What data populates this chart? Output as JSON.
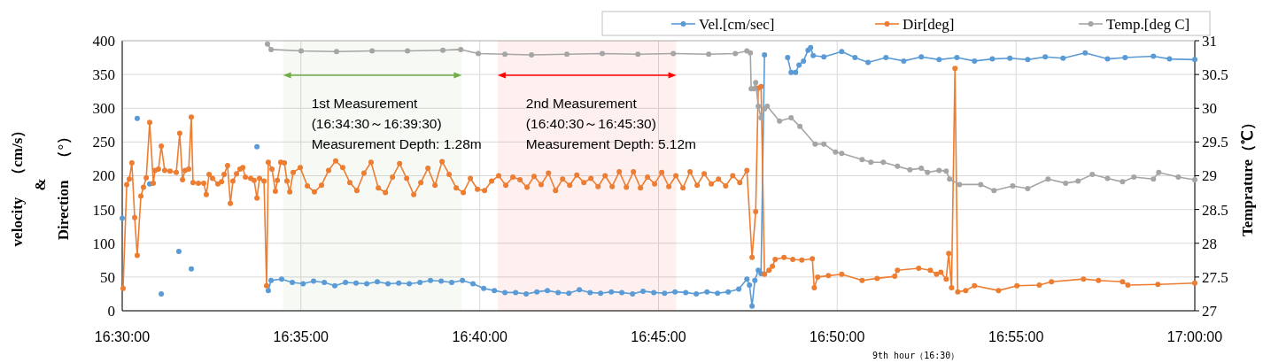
{
  "chart_data": {
    "type": "line",
    "xlabel": "9th hour（16:30）",
    "ylabel": "velocity　（cm/s）\n&\nDirection　（°）",
    "y2label": "Temprature（℃）",
    "xlim": [
      16.5,
      17
    ],
    "xticks": [
      {
        "value": 16.5,
        "label": "16:30:00"
      },
      {
        "value": 16.5833,
        "label": "16:35:00"
      },
      {
        "value": 16.6667,
        "label": "16:40:00"
      },
      {
        "value": 16.75,
        "label": "16:45:00"
      },
      {
        "value": 16.8333,
        "label": "16:50:00"
      },
      {
        "value": 16.9167,
        "label": "16:55:00"
      },
      {
        "value": 17,
        "label": "17:00:00"
      }
    ],
    "ylim": [
      0,
      400
    ],
    "yticks": [
      0,
      50,
      100,
      150,
      200,
      250,
      300,
      350,
      400
    ],
    "y2lim": [
      27,
      31
    ],
    "y2ticks": [
      27,
      27.5,
      28,
      28.5,
      29,
      29.5,
      30,
      30.5,
      31
    ],
    "grid": true,
    "legend": "top right",
    "marker": "circle",
    "bands": [
      {
        "axis": "x",
        "from": 16.575,
        "to": 16.6583,
        "label": "1st Measurement\n(16:34:30～16:39:30)\nMeasurement Depth: 1.28m",
        "color": "#70ad47"
      },
      {
        "axis": "x",
        "from": 16.675,
        "to": 16.7583,
        "label": "2nd Measurement\n(16:40:30～16:45:30)\nMeasurement Depth: 5.12m",
        "color": "#ff0000"
      }
    ],
    "series": [
      {
        "name": "Vel.[cm/sec]",
        "color": "#5b9bd5",
        "x": [
          16.5,
          16.5012,
          16.507,
          16.5083,
          16.5128,
          16.514,
          16.5182,
          16.5198,
          16.5264,
          16.5277,
          16.5322,
          16.5335,
          16.5628,
          16.5644,
          16.5681,
          16.5694,
          16.5743,
          16.5793,
          16.5843,
          16.5892,
          16.5942,
          16.5991,
          16.6041,
          16.609,
          16.614,
          16.6189,
          16.6239,
          16.6289,
          16.6338,
          16.6388,
          16.6437,
          16.6487,
          16.6536,
          16.6586,
          16.6635,
          16.6685,
          16.6735,
          16.6784,
          16.6834,
          16.6883,
          16.6933,
          16.6982,
          16.7032,
          16.7082,
          16.7131,
          16.7181,
          16.723,
          16.728,
          16.7329,
          16.7379,
          16.7428,
          16.7478,
          16.7528,
          16.7577,
          16.7627,
          16.7676,
          16.7726,
          16.7775,
          16.7825,
          16.7874,
          16.7912,
          16.7924,
          16.7936,
          16.7949,
          16.7965,
          16.7978,
          16.7994,
          16.8007,
          16.8102,
          16.8118,
          16.8139,
          16.8155,
          16.8176,
          16.8197,
          16.8209,
          16.8221,
          16.8271,
          16.8354,
          16.8416,
          16.8477,
          16.856,
          16.8643,
          16.8725,
          16.8808,
          16.8891,
          16.8973,
          16.9056,
          16.9138,
          16.9221,
          16.9303,
          16.9386,
          16.9489,
          16.9593,
          16.9675,
          16.9807,
          16.9882,
          17
        ],
        "values": [
          137,
          null,
          285,
          null,
          188,
          null,
          25,
          null,
          88,
          null,
          62,
          null,
          243,
          null,
          30,
          45,
          47,
          42,
          40,
          44,
          42,
          37,
          42,
          41,
          40,
          43,
          40,
          41,
          40,
          42,
          45,
          44,
          42,
          45,
          40,
          33,
          30,
          27,
          27,
          25,
          28,
          30,
          27,
          26,
          31,
          27,
          26,
          28,
          27,
          25,
          29,
          27,
          26,
          28,
          27,
          25,
          28,
          26,
          28,
          32,
          47,
          38,
          7,
          45,
          60,
          55,
          379,
          null,
          375,
          353,
          353,
          364,
          370,
          386,
          390,
          378,
          376,
          384,
          375,
          368,
          375,
          370,
          376,
          372,
          375,
          370,
          373,
          374,
          372,
          376,
          374,
          382,
          373,
          375,
          377,
          373,
          372
        ]
      },
      {
        "name": "Dir[deg]",
        "color": "#ed7d31",
        "x": [
          16.5004,
          16.5021,
          16.5033,
          16.5045,
          16.5058,
          16.507,
          16.5087,
          16.5099,
          16.5112,
          16.5128,
          16.5145,
          16.5153,
          16.5169,
          16.5182,
          16.5198,
          16.5223,
          16.5252,
          16.5268,
          16.5281,
          16.5293,
          16.531,
          16.5322,
          16.533,
          16.5355,
          16.538,
          16.5392,
          16.5405,
          16.5421,
          16.5446,
          16.5463,
          16.5475,
          16.5491,
          16.5504,
          16.5516,
          16.5533,
          16.5549,
          16.5562,
          16.5574,
          16.5599,
          16.5615,
          16.5628,
          16.564,
          16.5661,
          16.5673,
          16.5681,
          16.5698,
          16.5714,
          16.5723,
          16.5739,
          16.5756,
          16.5768,
          16.5781,
          16.5797,
          16.583,
          16.5863,
          16.5896,
          16.5929,
          16.5962,
          16.5995,
          16.6028,
          16.6061,
          16.6094,
          16.6127,
          16.616,
          16.6194,
          16.6227,
          16.626,
          16.6293,
          16.6326,
          16.6359,
          16.6392,
          16.6425,
          16.6458,
          16.6491,
          16.6524,
          16.6557,
          16.659,
          16.6623,
          16.6656,
          16.6689,
          16.6722,
          16.6755,
          16.6788,
          16.6821,
          16.6854,
          16.6887,
          16.692,
          16.6953,
          16.6987,
          16.702,
          16.7053,
          16.7086,
          16.7119,
          16.7152,
          16.7185,
          16.7218,
          16.7251,
          16.7284,
          16.7317,
          16.735,
          16.7383,
          16.7416,
          16.7449,
          16.7482,
          16.7515,
          16.7548,
          16.7581,
          16.7614,
          16.7647,
          16.768,
          16.7713,
          16.7746,
          16.778,
          16.7813,
          16.7846,
          16.7879,
          16.7912,
          16.7936,
          16.7953,
          16.7965,
          16.7978,
          16.7994,
          16.8015,
          16.8031,
          16.8044,
          16.8085,
          16.8126,
          16.8168,
          16.8217,
          16.8226,
          16.8242,
          16.8292,
          16.8354,
          16.8449,
          16.8519,
          16.8601,
          16.8614,
          16.8713,
          16.8767,
          16.8796,
          16.8816,
          16.8841,
          16.8853,
          16.8866,
          16.8882,
          16.8895,
          16.8932,
          16.8973,
          16.9085,
          16.9171,
          16.9275,
          16.9332,
          16.9481,
          16.9551,
          16.9663,
          16.9688,
          16.9828,
          17
        ],
        "values": [
          33,
          187,
          195,
          219,
          138,
          82,
          170,
          183,
          197,
          279,
          189,
          208,
          210,
          244,
          208,
          207,
          205,
          263,
          194,
          208,
          210,
          287,
          190,
          189,
          189,
          172,
          202,
          196,
          188,
          191,
          202,
          215,
          159,
          192,
          203,
          210,
          212,
          198,
          196,
          193,
          167,
          196,
          192,
          37,
          220,
          210,
          177,
          193,
          220,
          219,
          192,
          176,
          205,
          212,
          185,
          176,
          186,
          208,
          222,
          212,
          190,
          178,
          204,
          220,
          182,
          175,
          198,
          218,
          196,
          172,
          190,
          211,
          186,
          221,
          202,
          182,
          175,
          196,
          180,
          178,
          192,
          200,
          186,
          198,
          194,
          183,
          199,
          187,
          204,
          178,
          195,
          186,
          201,
          190,
          196,
          184,
          200,
          184,
          206,
          183,
          206,
          182,
          198,
          188,
          205,
          184,
          200,
          182,
          206,
          186,
          203,
          188,
          195,
          185,
          200,
          190,
          208,
          79,
          147,
          330,
          332,
          54,
          60,
          66,
          76,
          79,
          76,
          75,
          77,
          34,
          50,
          52,
          54,
          45,
          48,
          51,
          60,
          63,
          60,
          54,
          57,
          47,
          85,
          34,
          359,
          28,
          30,
          37,
          30,
          37,
          38,
          43,
          47,
          45,
          43,
          38,
          39,
          41
        ]
      },
      {
        "name": "Temp.[deg C]",
        "color": "#a5a5a5",
        "axis": "y2",
        "x": [
          16.5677,
          16.5694,
          16.5834,
          16.5999,
          16.6165,
          16.633,
          16.6495,
          16.6578,
          16.666,
          16.6784,
          16.6908,
          16.7073,
          16.7238,
          16.7404,
          16.7569,
          16.7734,
          16.7858,
          16.7912,
          16.7928,
          16.7932,
          16.7945,
          16.7953,
          16.7965,
          16.7978,
          16.7994,
          16.8007,
          16.8064,
          16.8118,
          16.8159,
          16.823,
          16.8271,
          16.8325,
          16.8354,
          16.8449,
          16.849,
          16.8548,
          16.8614,
          16.8672,
          16.8725,
          16.8754,
          16.8808,
          16.8841,
          16.8857,
          16.8903,
          16.9002,
          16.9064,
          16.9151,
          16.9221,
          16.9316,
          16.9398,
          16.9456,
          16.9522,
          16.9593,
          16.9663,
          16.9716,
          16.9807,
          16.9832,
          16.9923,
          17
        ],
        "values": [
          30.95,
          30.87,
          30.85,
          30.84,
          30.85,
          30.85,
          30.86,
          30.87,
          30.81,
          30.8,
          30.79,
          30.8,
          30.81,
          30.8,
          30.81,
          30.8,
          30.81,
          30.85,
          30.82,
          30.29,
          30.29,
          30.38,
          30.03,
          29.86,
          29.99,
          30.03,
          29.81,
          29.86,
          29.73,
          29.47,
          29.47,
          29.35,
          29.33,
          29.24,
          29.2,
          29.2,
          29.14,
          29.09,
          29.11,
          29.05,
          29.08,
          29.07,
          28.95,
          28.87,
          28.87,
          28.78,
          28.85,
          28.81,
          28.95,
          28.89,
          28.92,
          29.02,
          28.96,
          28.91,
          28.98,
          28.95,
          29.05,
          28.98,
          28.94
        ]
      }
    ]
  }
}
